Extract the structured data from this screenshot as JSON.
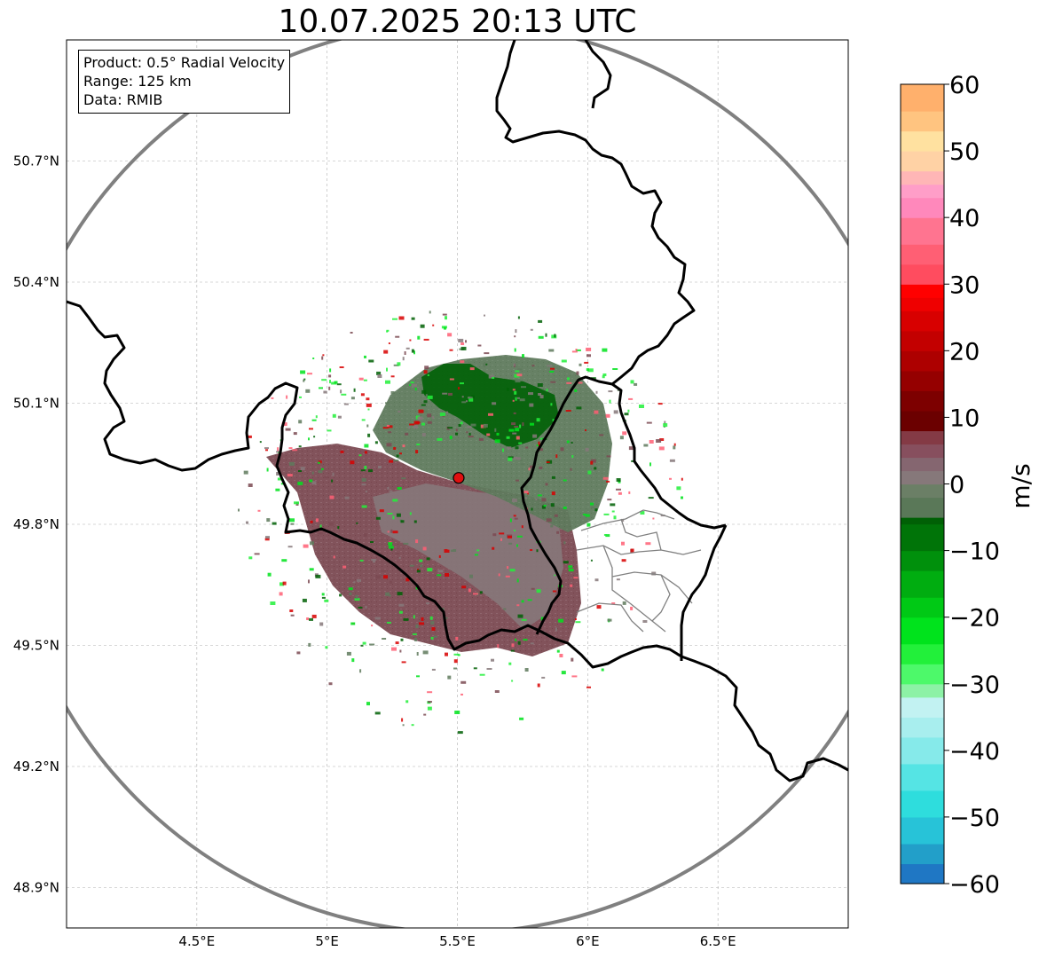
{
  "title": "10.07.2025 20:13 UTC",
  "info_box": {
    "product": "Product: 0.5° Radial Velocity",
    "range": "Range: 125 km",
    "source": "Data: RMIB"
  },
  "map": {
    "lon_range": [
      4.0,
      7.0
    ],
    "lat_range": [
      48.8,
      51.0
    ],
    "x_ticks": [
      "4.5°E",
      "5°E",
      "5.5°E",
      "6°E",
      "6.5°E"
    ],
    "x_tick_values": [
      4.5,
      5.0,
      5.5,
      6.0,
      6.5
    ],
    "y_ticks": [
      "48.9°N",
      "49.2°N",
      "49.5°N",
      "49.8°N",
      "50.1°N",
      "50.4°N",
      "50.7°N"
    ],
    "y_tick_values": [
      48.9,
      49.2,
      49.5,
      49.8,
      50.1,
      50.4,
      50.7
    ],
    "gridlines": true,
    "radar_site": {
      "lon": 5.505,
      "lat": 49.915
    },
    "range_ring_km": 125,
    "colors": {
      "range_ring": "#808080",
      "border": "#000000",
      "admin_border": "#808080",
      "radar_marker": "#e01010"
    }
  },
  "colorbar": {
    "label": "m/s",
    "min": -60,
    "max": 60,
    "ticks": [
      "60",
      "50",
      "40",
      "30",
      "20",
      "10",
      "0",
      "−10",
      "−20",
      "−30",
      "−40",
      "−50",
      "−60"
    ],
    "tick_values": [
      60,
      50,
      40,
      30,
      20,
      10,
      0,
      -10,
      -20,
      -30,
      -40,
      -50,
      -60
    ],
    "stops": [
      {
        "v": -60,
        "c": "#1f77c4"
      },
      {
        "v": -57,
        "c": "#229fc9"
      },
      {
        "v": -54,
        "c": "#27c3d8"
      },
      {
        "v": -50,
        "c": "#2edddd"
      },
      {
        "v": -46,
        "c": "#55e4e4"
      },
      {
        "v": -42,
        "c": "#86eaea"
      },
      {
        "v": -38,
        "c": "#a8eeee"
      },
      {
        "v": -35,
        "c": "#c2f2f2"
      },
      {
        "v": -32,
        "c": "#8df2a6"
      },
      {
        "v": -30,
        "c": "#4df96a"
      },
      {
        "v": -27,
        "c": "#22f03a"
      },
      {
        "v": -24,
        "c": "#00e31c"
      },
      {
        "v": -20,
        "c": "#00c915"
      },
      {
        "v": -17,
        "c": "#00ad10"
      },
      {
        "v": -13,
        "c": "#00900c"
      },
      {
        "v": -10,
        "c": "#007408"
      },
      {
        "v": -6,
        "c": "#006005"
      },
      {
        "v": -5,
        "c": "#5a7858"
      },
      {
        "v": -2,
        "c": "#6b7f66"
      },
      {
        "v": 0,
        "c": "#86787a"
      },
      {
        "v": 2,
        "c": "#856670"
      },
      {
        "v": 4,
        "c": "#874f5e"
      },
      {
        "v": 6,
        "c": "#843a45"
      },
      {
        "v": 8,
        "c": "#6b0000"
      },
      {
        "v": 11,
        "c": "#7d0000"
      },
      {
        "v": 14,
        "c": "#950000"
      },
      {
        "v": 17,
        "c": "#ad0000"
      },
      {
        "v": 20,
        "c": "#c30000"
      },
      {
        "v": 23,
        "c": "#d80000"
      },
      {
        "v": 26,
        "c": "#ef0000"
      },
      {
        "v": 28,
        "c": "#ff0000"
      },
      {
        "v": 30,
        "c": "#ff4c5f"
      },
      {
        "v": 33,
        "c": "#ff5f74"
      },
      {
        "v": 36,
        "c": "#ff7490"
      },
      {
        "v": 40,
        "c": "#ff88bb"
      },
      {
        "v": 43,
        "c": "#ff9ec8"
      },
      {
        "v": 45,
        "c": "#ffb6b6"
      },
      {
        "v": 47,
        "c": "#ffd2a5"
      },
      {
        "v": 50,
        "c": "#ffe1a0"
      },
      {
        "v": 53,
        "c": "#ffc480"
      },
      {
        "v": 56,
        "c": "#ffb06c"
      },
      {
        "v": 60,
        "c": "#ff9955"
      }
    ]
  }
}
